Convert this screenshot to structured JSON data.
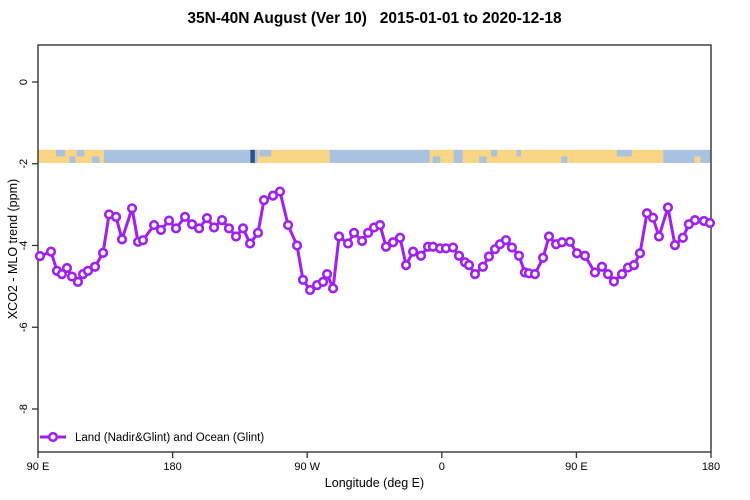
{
  "title": "35N-40N August (Ver 10)   2015-01-01 to 2020-12-18",
  "legend": {
    "label": "Land (Nadir&Glint) and Ocean (Glint)"
  },
  "colors": {
    "line": "#A020F0",
    "marker_fill": "#ffffff",
    "land": "#FAD584",
    "ocean": "#A8C2DF",
    "dark_patch": "#2F4F8F",
    "axis": "#333333",
    "text": "#000000"
  },
  "chart_data": {
    "type": "line",
    "title": "35N-40N August (Ver 10)   2015-01-01 to 2020-12-18",
    "xlabel": "Longitude (deg E)",
    "ylabel": "XCO2 - MLO trend (ppm)",
    "x_axis_note": "longitude unwrapped eastward starting at 90E (90E=90, 180=180, 90W=270, 0=360, 90E=450, 180=540)",
    "xlim": [
      90,
      540
    ],
    "ylim": [
      -9.05,
      0.9
    ],
    "grid": false,
    "legend_position": "bottom-left",
    "x_ticks": [
      {
        "deg": 90,
        "label": "90 E"
      },
      {
        "deg": 180,
        "label": "180"
      },
      {
        "deg": 270,
        "label": "90 W"
      },
      {
        "deg": 360,
        "label": "0"
      },
      {
        "deg": 450,
        "label": "90 E"
      },
      {
        "deg": 540,
        "label": "180"
      }
    ],
    "y_ticks": [
      0,
      -2,
      -4,
      -6,
      -8
    ],
    "map_band": {
      "value_top": -1.66,
      "value_bottom": -1.98,
      "segments": [
        {
          "d0": 90,
          "d1": 134,
          "type": "land"
        },
        {
          "d0": 134,
          "d1": 237,
          "type": "ocean"
        },
        {
          "d0": 237,
          "d1": 285,
          "type": "land"
        },
        {
          "d0": 285,
          "d1": 352,
          "type": "ocean"
        },
        {
          "d0": 352,
          "d1": 508,
          "type": "land"
        },
        {
          "d0": 508,
          "d1": 540,
          "type": "ocean"
        }
      ],
      "patches": [
        {
          "d0": 102,
          "d1": 108,
          "pos": "top",
          "type": "ocean"
        },
        {
          "d0": 111,
          "d1": 115,
          "pos": "bottom",
          "type": "ocean"
        },
        {
          "d0": 116,
          "d1": 121,
          "pos": "top",
          "type": "ocean"
        },
        {
          "d0": 126,
          "d1": 131,
          "pos": "bottom",
          "type": "ocean"
        },
        {
          "d0": 232,
          "d1": 235,
          "pos": "full",
          "type": "dark"
        },
        {
          "d0": 238,
          "d1": 246,
          "pos": "top",
          "type": "ocean"
        },
        {
          "d0": 354,
          "d1": 359,
          "pos": "bottom",
          "type": "ocean"
        },
        {
          "d0": 368,
          "d1": 374,
          "pos": "full",
          "type": "ocean"
        },
        {
          "d0": 385,
          "d1": 390,
          "pos": "bottom",
          "type": "ocean"
        },
        {
          "d0": 393,
          "d1": 397,
          "pos": "top",
          "type": "ocean"
        },
        {
          "d0": 410,
          "d1": 413,
          "pos": "top",
          "type": "ocean"
        },
        {
          "d0": 477,
          "d1": 487,
          "pos": "top",
          "type": "ocean"
        },
        {
          "d0": 440,
          "d1": 444,
          "pos": "bottom",
          "type": "ocean"
        },
        {
          "d0": 529,
          "d1": 533,
          "pos": "bottom",
          "type": "land"
        }
      ]
    },
    "series": [
      {
        "name": "Land (Nadir&Glint) and Ocean (Glint)",
        "points": [
          [
            91.3,
            -4.26
          ],
          [
            98.7,
            -4.15
          ],
          [
            102.7,
            -4.62
          ],
          [
            106.0,
            -4.7
          ],
          [
            109.4,
            -4.55
          ],
          [
            112.7,
            -4.76
          ],
          [
            116.7,
            -4.89
          ],
          [
            120.1,
            -4.7
          ],
          [
            123.4,
            -4.62
          ],
          [
            128.1,
            -4.52
          ],
          [
            133.5,
            -4.18
          ],
          [
            137.5,
            -3.24
          ],
          [
            142.2,
            -3.3
          ],
          [
            146.2,
            -3.85
          ],
          [
            152.9,
            -3.09
          ],
          [
            156.9,
            -3.91
          ],
          [
            160.2,
            -3.87
          ],
          [
            167.6,
            -3.5
          ],
          [
            172.2,
            -3.62
          ],
          [
            177.6,
            -3.39
          ],
          [
            182.3,
            -3.58
          ],
          [
            188.3,
            -3.3
          ],
          [
            193.0,
            -3.48
          ],
          [
            197.7,
            -3.58
          ],
          [
            203.0,
            -3.33
          ],
          [
            207.7,
            -3.56
          ],
          [
            213.0,
            -3.38
          ],
          [
            217.7,
            -3.58
          ],
          [
            222.4,
            -3.78
          ],
          [
            227.1,
            -3.58
          ],
          [
            231.8,
            -3.95
          ],
          [
            237.1,
            -3.69
          ],
          [
            241.1,
            -2.89
          ],
          [
            247.1,
            -2.78
          ],
          [
            251.8,
            -2.68
          ],
          [
            257.2,
            -3.5
          ],
          [
            263.2,
            -4.0
          ],
          [
            267.2,
            -4.84
          ],
          [
            271.9,
            -5.09
          ],
          [
            276.6,
            -4.97
          ],
          [
            280.6,
            -4.89
          ],
          [
            283.3,
            -4.7
          ],
          [
            287.3,
            -5.05
          ],
          [
            291.3,
            -3.78
          ],
          [
            297.3,
            -3.95
          ],
          [
            301.3,
            -3.69
          ],
          [
            306.7,
            -3.89
          ],
          [
            310.7,
            -3.69
          ],
          [
            314.7,
            -3.56
          ],
          [
            318.7,
            -3.5
          ],
          [
            322.7,
            -4.03
          ],
          [
            327.4,
            -3.92
          ],
          [
            332.1,
            -3.81
          ],
          [
            336.1,
            -4.48
          ],
          [
            340.8,
            -4.15
          ],
          [
            346.1,
            -4.25
          ],
          [
            350.8,
            -4.03
          ],
          [
            354.1,
            -4.03
          ],
          [
            358.8,
            -4.07
          ],
          [
            362.8,
            -4.07
          ],
          [
            367.5,
            -4.05
          ],
          [
            371.5,
            -4.25
          ],
          [
            375.5,
            -4.41
          ],
          [
            378.2,
            -4.48
          ],
          [
            382.2,
            -4.7
          ],
          [
            387.5,
            -4.52
          ],
          [
            391.5,
            -4.27
          ],
          [
            395.6,
            -4.09
          ],
          [
            398.9,
            -3.97
          ],
          [
            402.9,
            -3.87
          ],
          [
            406.9,
            -4.05
          ],
          [
            411.6,
            -4.25
          ],
          [
            415.6,
            -4.66
          ],
          [
            418.3,
            -4.68
          ],
          [
            422.3,
            -4.7
          ],
          [
            427.7,
            -4.3
          ],
          [
            431.7,
            -3.78
          ],
          [
            436.4,
            -3.97
          ],
          [
            440.4,
            -3.92
          ],
          [
            445.7,
            -3.91
          ],
          [
            450.4,
            -4.19
          ],
          [
            455.7,
            -4.25
          ],
          [
            462.4,
            -4.66
          ],
          [
            467.1,
            -4.52
          ],
          [
            471.1,
            -4.7
          ],
          [
            475.1,
            -4.88
          ],
          [
            480.5,
            -4.7
          ],
          [
            484.5,
            -4.54
          ],
          [
            488.5,
            -4.48
          ],
          [
            492.5,
            -4.19
          ],
          [
            497.2,
            -3.21
          ],
          [
            501.2,
            -3.32
          ],
          [
            505.2,
            -3.78
          ],
          [
            511.2,
            -3.07
          ],
          [
            515.9,
            -3.99
          ],
          [
            521.2,
            -3.81
          ],
          [
            525.2,
            -3.48
          ],
          [
            529.3,
            -3.38
          ],
          [
            535.3,
            -3.4
          ],
          [
            539.3,
            -3.45
          ]
        ]
      }
    ]
  }
}
